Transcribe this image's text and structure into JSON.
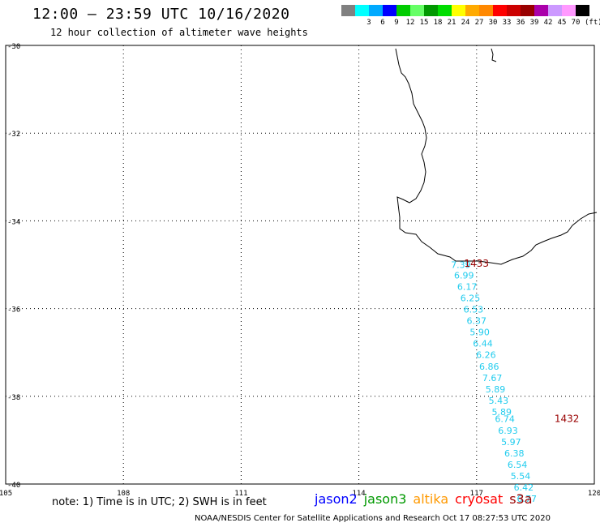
{
  "header": {
    "title": "12:00 – 23:59 UTC 10/16/2020",
    "subtitle": "12 hour collection of altimeter wave heights"
  },
  "scale": {
    "unit": "(ft)",
    "swatches": [
      {
        "color": "#808080",
        "label": ""
      },
      {
        "color": "#00ffff",
        "label": "3"
      },
      {
        "color": "#00aaff",
        "label": "6"
      },
      {
        "color": "#0000ff",
        "label": "9"
      },
      {
        "color": "#00cc00",
        "label": "12"
      },
      {
        "color": "#66ff66",
        "label": "15"
      },
      {
        "color": "#009900",
        "label": "18"
      },
      {
        "color": "#00dd00",
        "label": "21"
      },
      {
        "color": "#ffff00",
        "label": "24"
      },
      {
        "color": "#ffaa00",
        "label": "27"
      },
      {
        "color": "#ff8800",
        "label": "30"
      },
      {
        "color": "#ff0000",
        "label": "33"
      },
      {
        "color": "#cc0000",
        "label": "36"
      },
      {
        "color": "#990000",
        "label": "39"
      },
      {
        "color": "#aa00aa",
        "label": "42"
      },
      {
        "color": "#cc99ff",
        "label": "45"
      },
      {
        "color": "#ff99ff",
        "label": "70"
      },
      {
        "color": "#000000",
        "label": ""
      }
    ]
  },
  "map": {
    "lat_labels": [
      "-30",
      "-32",
      "-34",
      "-36",
      "-38",
      "-40"
    ],
    "lon_labels": [
      "105",
      "108",
      "111",
      "114",
      "117",
      "120"
    ],
    "lon_range": [
      105,
      120
    ],
    "lat_range": [
      -30,
      -40
    ],
    "wave_color": "#22ccee",
    "time_color": "#990000",
    "wave_heights": [
      {
        "lat": -35.07,
        "lon": 116.6,
        "value": "7.39"
      },
      {
        "lat": -35.31,
        "lon": 116.68,
        "value": "6.99"
      },
      {
        "lat": -35.57,
        "lon": 116.76,
        "value": "6.17"
      },
      {
        "lat": -35.83,
        "lon": 116.84,
        "value": "6.25"
      },
      {
        "lat": -36.09,
        "lon": 116.92,
        "value": "6.53"
      },
      {
        "lat": -36.35,
        "lon": 117.0,
        "value": "6.37"
      },
      {
        "lat": -36.61,
        "lon": 117.08,
        "value": "5.90"
      },
      {
        "lat": -36.87,
        "lon": 117.16,
        "value": "6.44"
      },
      {
        "lat": -37.13,
        "lon": 117.24,
        "value": "6.26"
      },
      {
        "lat": -37.39,
        "lon": 117.32,
        "value": "6.86"
      },
      {
        "lat": -37.65,
        "lon": 117.4,
        "value": "7.67"
      },
      {
        "lat": -37.91,
        "lon": 117.48,
        "value": "5.89"
      },
      {
        "lat": -38.17,
        "lon": 117.56,
        "value": "5.43"
      },
      {
        "lat": -38.43,
        "lon": 117.64,
        "value": "5.89"
      },
      {
        "lat": -38.59,
        "lon": 117.72,
        "value": "6.74"
      },
      {
        "lat": -38.85,
        "lon": 117.8,
        "value": "6.93"
      },
      {
        "lat": -39.11,
        "lon": 117.88,
        "value": "5.97"
      },
      {
        "lat": -39.37,
        "lon": 117.96,
        "value": "6.38"
      },
      {
        "lat": -39.63,
        "lon": 118.04,
        "value": "6.54"
      },
      {
        "lat": -39.89,
        "lon": 118.12,
        "value": "5.54"
      },
      {
        "lat": -40.15,
        "lon": 118.2,
        "value": "6.42"
      },
      {
        "lat": -40.41,
        "lon": 118.28,
        "value": "6.77"
      }
    ],
    "time_labels": [
      {
        "lat": -35.05,
        "lon": 117.0,
        "value": "1433"
      },
      {
        "lat": -38.59,
        "lon": 119.3,
        "value": "1432"
      }
    ]
  },
  "note": "note: 1) Time is in UTC; 2) SWH is in feet",
  "legend": [
    {
      "name": "jason2",
      "color": "#0000ff"
    },
    {
      "name": "jason3",
      "color": "#009900"
    },
    {
      "name": "altika",
      "color": "#ff9900"
    },
    {
      "name": "cryosat",
      "color": "#ff0000"
    },
    {
      "name": "s3a",
      "color": "#990000"
    }
  ],
  "footer": "NOAA/NESDIS Center for Satellite Applications and Research    Oct 17 08:27:53 UTC 2020"
}
